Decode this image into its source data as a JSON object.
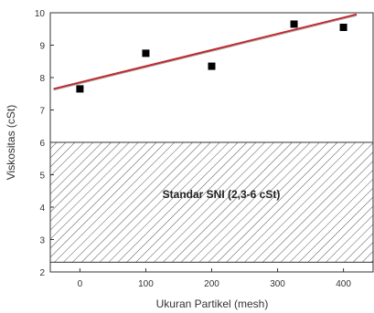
{
  "chart_data": {
    "type": "scatter",
    "xlabel": "Ukuran Partikel (mesh)",
    "ylabel": "Viskositas (cSt)",
    "xlim": [
      -45,
      445
    ],
    "ylim": [
      2,
      10
    ],
    "xticks": [
      0,
      100,
      200,
      300,
      400
    ],
    "yticks": [
      2,
      3,
      4,
      5,
      6,
      7,
      8,
      9,
      10
    ],
    "grid": false,
    "series": [
      {
        "kind": "scatter",
        "marker": "square",
        "color": "#000000",
        "x": [
          0,
          100,
          200,
          325,
          400
        ],
        "y": [
          7.65,
          8.75,
          8.35,
          9.65,
          9.55
        ]
      },
      {
        "kind": "line",
        "color": "#c0282d",
        "x": [
          -40,
          420
        ],
        "y": [
          7.65,
          9.95
        ]
      }
    ],
    "band": {
      "y_range": [
        2.3,
        6.0
      ],
      "fill": "hatched",
      "label": "Standar SNI (2,3-6 cSt)"
    }
  }
}
